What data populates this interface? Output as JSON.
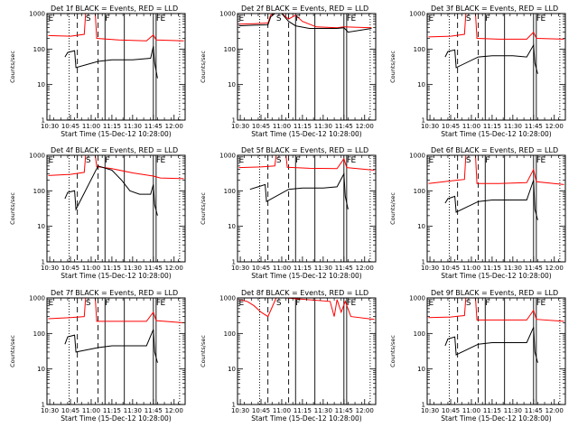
{
  "chart_data": {
    "type": "line",
    "xlabel": "Start Time (15-Dec-12 10:28:00)",
    "ylabel": "Counts/sec",
    "x_ticks": [
      "10:30",
      "10:45",
      "11:00",
      "11:15",
      "11:30",
      "11:45",
      "12:00"
    ],
    "x_range": [
      "10:28",
      "12:08"
    ],
    "y_scale": "log",
    "ylim": [
      1,
      1000
    ],
    "y_ticks": [
      "1",
      "10",
      "100",
      "1000"
    ],
    "colors": {
      "events": "#000000",
      "lld": "#ff0000"
    },
    "markers": [
      {
        "label": "E",
        "time": "10:29"
      },
      {
        "label": "S",
        "time": "10:56"
      },
      {
        "label": "F",
        "time": "11:10"
      },
      {
        "label": "F",
        "time": "11:47"
      },
      {
        "label": "E",
        "time": "11:50"
      }
    ],
    "guide_lines": {
      "dotted": [
        "10:44",
        "12:04"
      ],
      "dashed": [
        "10:50",
        "11:05"
      ],
      "solid": [
        "11:10",
        "11:24",
        "11:45",
        "11:47"
      ]
    },
    "panels": [
      {
        "title": "Det 1f BLACK = Events, RED = LLD",
        "events": [
          [
            "10:41",
            60
          ],
          [
            "10:43",
            80
          ],
          [
            "10:48",
            90
          ],
          [
            "10:49",
            30
          ],
          [
            "11:05",
            45
          ],
          [
            "11:15",
            50
          ],
          [
            "11:30",
            50
          ],
          [
            "11:43",
            55
          ],
          [
            "11:45",
            120
          ],
          [
            "11:46",
            40
          ],
          [
            "11:48",
            15
          ]
        ],
        "lld": [
          [
            "10:29",
            240
          ],
          [
            "10:45",
            230
          ],
          [
            "10:55",
            260
          ],
          [
            "10:56",
            1000
          ],
          [
            "11:03",
            1000
          ],
          [
            "11:04",
            200
          ],
          [
            "11:20",
            180
          ],
          [
            "11:40",
            170
          ],
          [
            "11:45",
            250
          ],
          [
            "11:47",
            180
          ],
          [
            "12:07",
            170
          ]
        ]
      },
      {
        "title": "Det 2f BLACK = Events, RED = LLD",
        "events": [
          [
            "10:29",
            450
          ],
          [
            "10:40",
            470
          ],
          [
            "10:50",
            480
          ],
          [
            "10:52",
            800
          ],
          [
            "10:55",
            1000
          ],
          [
            "11:00",
            1000
          ],
          [
            "11:05",
            600
          ],
          [
            "11:10",
            450
          ],
          [
            "11:20",
            380
          ],
          [
            "11:40",
            380
          ],
          [
            "11:45",
            400
          ],
          [
            "11:48",
            300
          ],
          [
            "12:05",
            380
          ]
        ],
        "lld": [
          [
            "10:29",
            500
          ],
          [
            "10:40",
            520
          ],
          [
            "10:50",
            540
          ],
          [
            "10:52",
            900
          ],
          [
            "10:55",
            1000
          ],
          [
            "11:00",
            1000
          ],
          [
            "11:05",
            700
          ],
          [
            "11:10",
            900
          ],
          [
            "11:15",
            600
          ],
          [
            "11:25",
            420
          ],
          [
            "11:40",
            400
          ],
          [
            "11:45",
            420
          ],
          [
            "12:05",
            400
          ]
        ]
      },
      {
        "title": "Det 3f BLACK = Events, RED = LLD",
        "events": [
          [
            "10:41",
            60
          ],
          [
            "10:43",
            85
          ],
          [
            "10:48",
            95
          ],
          [
            "10:49",
            30
          ],
          [
            "11:05",
            60
          ],
          [
            "11:15",
            65
          ],
          [
            "11:30",
            65
          ],
          [
            "11:40",
            60
          ],
          [
            "11:45",
            130
          ],
          [
            "11:46",
            40
          ],
          [
            "11:48",
            20
          ]
        ],
        "lld": [
          [
            "10:29",
            220
          ],
          [
            "10:45",
            230
          ],
          [
            "10:55",
            260
          ],
          [
            "10:56",
            1000
          ],
          [
            "11:03",
            1000
          ],
          [
            "11:04",
            200
          ],
          [
            "11:20",
            190
          ],
          [
            "11:40",
            190
          ],
          [
            "11:45",
            300
          ],
          [
            "11:47",
            200
          ],
          [
            "12:07",
            190
          ]
        ]
      },
      {
        "title": "Det 4f BLACK = Events, RED = LLD",
        "events": [
          [
            "10:41",
            60
          ],
          [
            "10:43",
            90
          ],
          [
            "10:48",
            100
          ],
          [
            "10:49",
            30
          ],
          [
            "11:05",
            500
          ],
          [
            "11:15",
            380
          ],
          [
            "11:22",
            200
          ],
          [
            "11:28",
            100
          ],
          [
            "11:35",
            80
          ],
          [
            "11:43",
            80
          ],
          [
            "11:45",
            150
          ],
          [
            "11:46",
            40
          ],
          [
            "11:48",
            20
          ]
        ],
        "lld": [
          [
            "10:29",
            270
          ],
          [
            "10:45",
            290
          ],
          [
            "10:55",
            330
          ],
          [
            "10:56",
            1000
          ],
          [
            "11:03",
            1000
          ],
          [
            "11:04",
            480
          ],
          [
            "11:15",
            420
          ],
          [
            "11:30",
            320
          ],
          [
            "11:45",
            260
          ],
          [
            "11:50",
            230
          ],
          [
            "12:07",
            220
          ]
        ]
      },
      {
        "title": "Det 5f BLACK = Events, RED = LLD",
        "events": [
          [
            "10:37",
            110
          ],
          [
            "10:43",
            130
          ],
          [
            "10:48",
            150
          ],
          [
            "10:49",
            50
          ],
          [
            "11:05",
            110
          ],
          [
            "11:15",
            120
          ],
          [
            "11:30",
            120
          ],
          [
            "11:40",
            130
          ],
          [
            "11:45",
            300
          ],
          [
            "11:46",
            70
          ],
          [
            "11:48",
            30
          ]
        ],
        "lld": [
          [
            "10:29",
            450
          ],
          [
            "10:45",
            470
          ],
          [
            "10:55",
            500
          ],
          [
            "10:56",
            1000
          ],
          [
            "11:03",
            1000
          ],
          [
            "11:04",
            460
          ],
          [
            "11:20",
            430
          ],
          [
            "11:40",
            420
          ],
          [
            "11:45",
            800
          ],
          [
            "11:47",
            450
          ],
          [
            "12:07",
            380
          ]
        ]
      },
      {
        "title": "Det 6f BLACK = Events, RED = LLD",
        "events": [
          [
            "10:41",
            45
          ],
          [
            "10:43",
            60
          ],
          [
            "10:48",
            70
          ],
          [
            "10:49",
            25
          ],
          [
            "11:05",
            50
          ],
          [
            "11:15",
            55
          ],
          [
            "11:30",
            55
          ],
          [
            "11:40",
            55
          ],
          [
            "11:45",
            200
          ],
          [
            "11:46",
            30
          ],
          [
            "11:48",
            15
          ]
        ],
        "lld": [
          [
            "10:29",
            160
          ],
          [
            "10:45",
            190
          ],
          [
            "10:55",
            210
          ],
          [
            "10:56",
            1000
          ],
          [
            "11:03",
            1000
          ],
          [
            "11:04",
            160
          ],
          [
            "11:20",
            160
          ],
          [
            "11:40",
            170
          ],
          [
            "11:45",
            400
          ],
          [
            "11:47",
            180
          ],
          [
            "12:07",
            150
          ]
        ]
      },
      {
        "title": "Det 7f BLACK = Events, RED = LLD",
        "events": [
          [
            "10:41",
            50
          ],
          [
            "10:43",
            80
          ],
          [
            "10:48",
            90
          ],
          [
            "10:49",
            30
          ],
          [
            "11:05",
            40
          ],
          [
            "11:15",
            45
          ],
          [
            "11:30",
            45
          ],
          [
            "11:40",
            45
          ],
          [
            "11:45",
            130
          ],
          [
            "11:46",
            30
          ],
          [
            "11:48",
            15
          ]
        ],
        "lld": [
          [
            "10:29",
            260
          ],
          [
            "10:45",
            280
          ],
          [
            "10:55",
            300
          ],
          [
            "10:56",
            1000
          ],
          [
            "11:03",
            1000
          ],
          [
            "11:04",
            220
          ],
          [
            "11:20",
            220
          ],
          [
            "11:40",
            220
          ],
          [
            "11:45",
            400
          ],
          [
            "11:47",
            230
          ],
          [
            "12:07",
            200
          ]
        ]
      },
      {
        "title": "Det 8f BLACK = Events, RED = LLD",
        "events": [],
        "lld": [
          [
            "10:29",
            900
          ],
          [
            "10:35",
            800
          ],
          [
            "10:40",
            600
          ],
          [
            "10:45",
            400
          ],
          [
            "10:50",
            300
          ],
          [
            "10:56",
            1000
          ],
          [
            "11:03",
            1000
          ],
          [
            "11:35",
            800
          ],
          [
            "11:38",
            300
          ],
          [
            "11:40",
            900
          ],
          [
            "11:43",
            400
          ],
          [
            "11:46",
            800
          ],
          [
            "11:50",
            300
          ],
          [
            "12:07",
            250
          ]
        ]
      },
      {
        "title": "Det 9f BLACK = Events, RED = LLD",
        "events": [
          [
            "10:41",
            45
          ],
          [
            "10:43",
            70
          ],
          [
            "10:48",
            80
          ],
          [
            "10:49",
            25
          ],
          [
            "11:05",
            50
          ],
          [
            "11:15",
            55
          ],
          [
            "11:30",
            55
          ],
          [
            "11:40",
            55
          ],
          [
            "11:45",
            150
          ],
          [
            "11:46",
            30
          ],
          [
            "11:48",
            15
          ]
        ],
        "lld": [
          [
            "10:29",
            280
          ],
          [
            "10:45",
            290
          ],
          [
            "10:55",
            320
          ],
          [
            "10:56",
            1000
          ],
          [
            "11:03",
            1000
          ],
          [
            "11:04",
            240
          ],
          [
            "11:20",
            240
          ],
          [
            "11:40",
            240
          ],
          [
            "11:45",
            450
          ],
          [
            "11:47",
            250
          ],
          [
            "12:07",
            220
          ]
        ]
      }
    ]
  }
}
